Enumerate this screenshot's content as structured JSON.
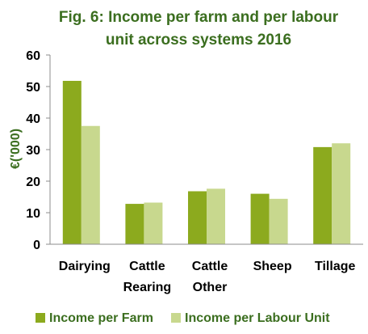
{
  "chart_data": {
    "type": "bar",
    "title_lines": [
      "Fig. 6: Income per farm and per labour",
      "unit across systems 2016"
    ],
    "ylabel": "€('000)",
    "xlabel": "",
    "categories": [
      [
        "Dairying"
      ],
      [
        "Cattle",
        "Rearing"
      ],
      [
        "Cattle",
        "Other"
      ],
      [
        "Sheep"
      ],
      [
        "Tillage"
      ]
    ],
    "series": [
      {
        "name": "Income per Farm",
        "color": "#8caa1e",
        "values": [
          51.8,
          12.8,
          16.8,
          16.0,
          30.8
        ]
      },
      {
        "name": "Income per Labour Unit",
        "color": "#c8d88e",
        "values": [
          37.5,
          13.2,
          17.6,
          14.4,
          32.0
        ]
      }
    ],
    "ylim": [
      0,
      60
    ],
    "yticks": [
      0,
      10,
      20,
      30,
      40,
      50,
      60
    ],
    "grid": false,
    "legend": "bottom"
  }
}
